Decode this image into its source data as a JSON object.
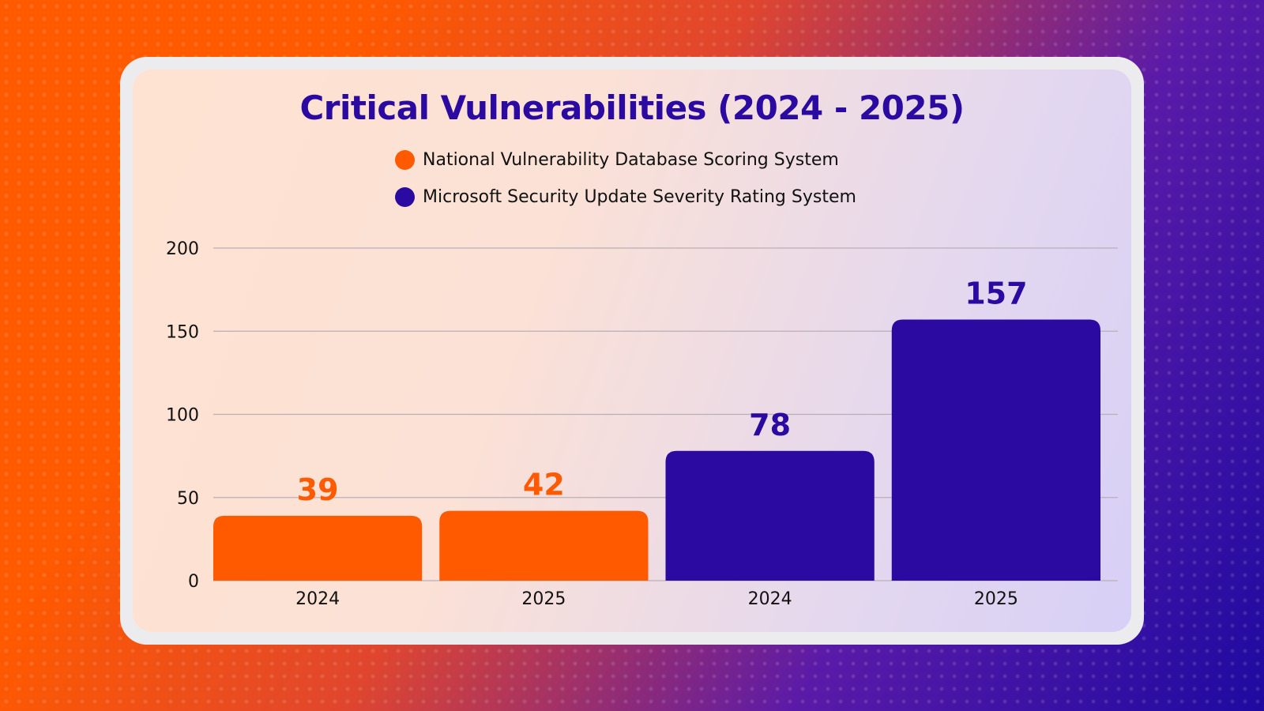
{
  "chart_data": {
    "type": "bar",
    "title": "Critical Vulnerabilities (2024 - 2025)",
    "categories": [
      "2024",
      "2025",
      "2024",
      "2025"
    ],
    "values": [
      39,
      42,
      78,
      157
    ],
    "series_index": [
      0,
      0,
      1,
      1
    ],
    "series": [
      {
        "name": "National Vulnerability Database Scoring System",
        "color": "#ff5a00"
      },
      {
        "name": "Microsoft Security Update Severity Rating System",
        "color": "#2a0aa0"
      }
    ],
    "ylim": [
      0,
      200
    ],
    "yticks": [
      0,
      50,
      100,
      150,
      200
    ],
    "grid": true,
    "legend_position": "top-center"
  }
}
